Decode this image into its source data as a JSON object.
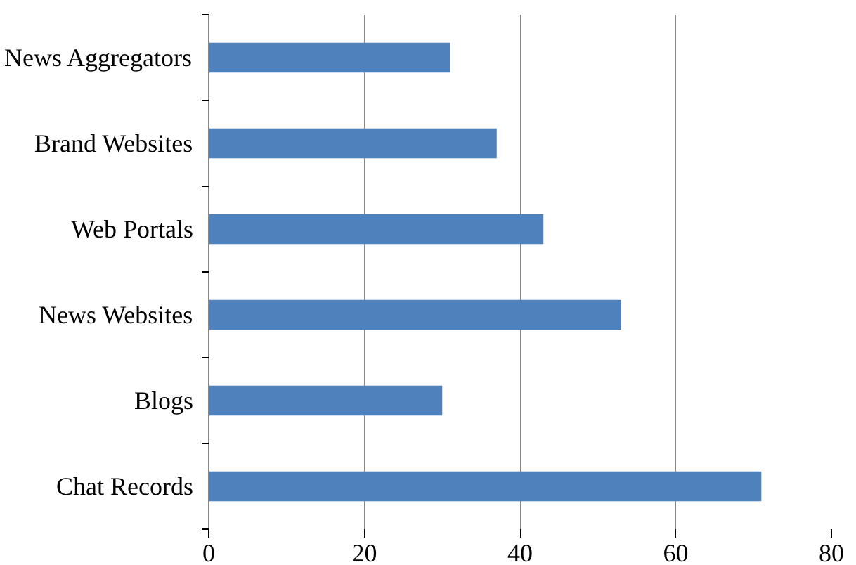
{
  "chart_data": {
    "type": "bar",
    "orientation": "horizontal",
    "categories": [
      "News Aggregators",
      "Brand Websites",
      "Web Portals",
      "News Websites",
      "Blogs",
      "Chat Records"
    ],
    "values": [
      31,
      37,
      43,
      53,
      30,
      71
    ],
    "color": "#4f81bd",
    "xlim": [
      0,
      80
    ],
    "xticks": [
      0,
      20,
      40,
      60,
      80
    ],
    "grid": "x"
  }
}
